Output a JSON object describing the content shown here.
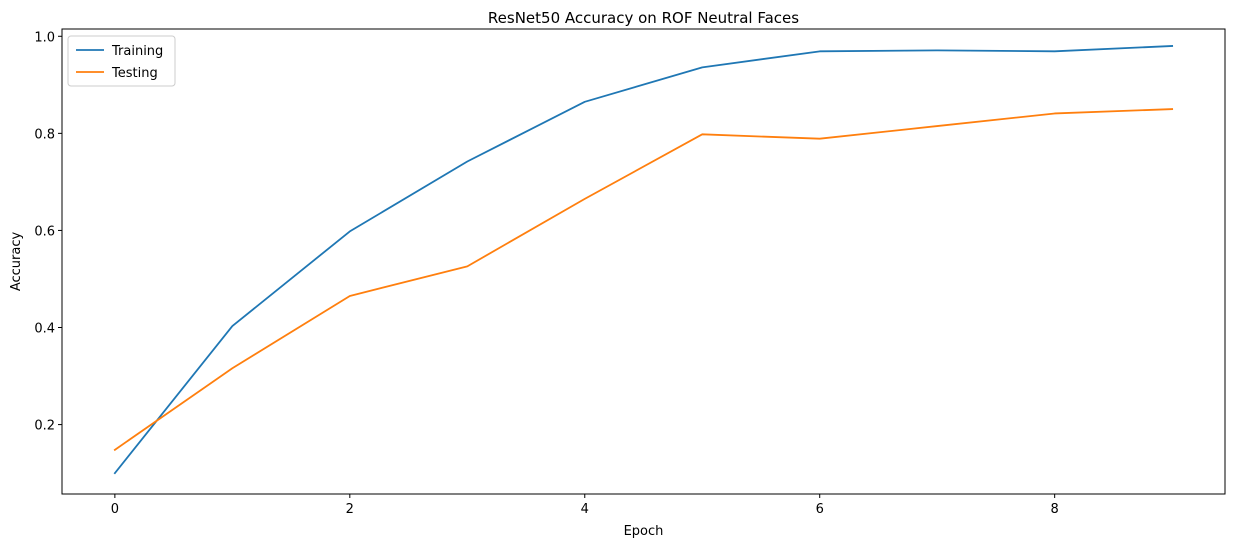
{
  "chart_data": {
    "type": "line",
    "title": "ResNet50 Accuracy on ROF Neutral Faces",
    "xlabel": "Epoch",
    "ylabel": "Accuracy",
    "x": [
      0,
      1,
      2,
      3,
      4,
      5,
      6,
      7,
      8,
      9
    ],
    "xlim": [
      -0.45,
      9.45
    ],
    "ylim": [
      0.057,
      1.015
    ],
    "xticks": [
      0,
      2,
      4,
      6,
      8
    ],
    "xtick_labels": [
      "0",
      "2",
      "4",
      "6",
      "8"
    ],
    "yticks": [
      0.2,
      0.4,
      0.6,
      0.8,
      1.0
    ],
    "ytick_labels": [
      "0.2",
      "0.4",
      "0.6",
      "0.8",
      "1.0"
    ],
    "grid": false,
    "legend_position": "top-left",
    "series": [
      {
        "name": "Training",
        "color": "#1f77b4",
        "values": [
          0.1,
          0.403,
          0.598,
          0.742,
          0.865,
          0.936,
          0.969,
          0.971,
          0.969,
          0.98
        ]
      },
      {
        "name": "Testing",
        "color": "#ff7f0e",
        "values": [
          0.148,
          0.316,
          0.465,
          0.526,
          0.665,
          0.798,
          0.789,
          0.815,
          0.841,
          0.85
        ]
      }
    ]
  }
}
